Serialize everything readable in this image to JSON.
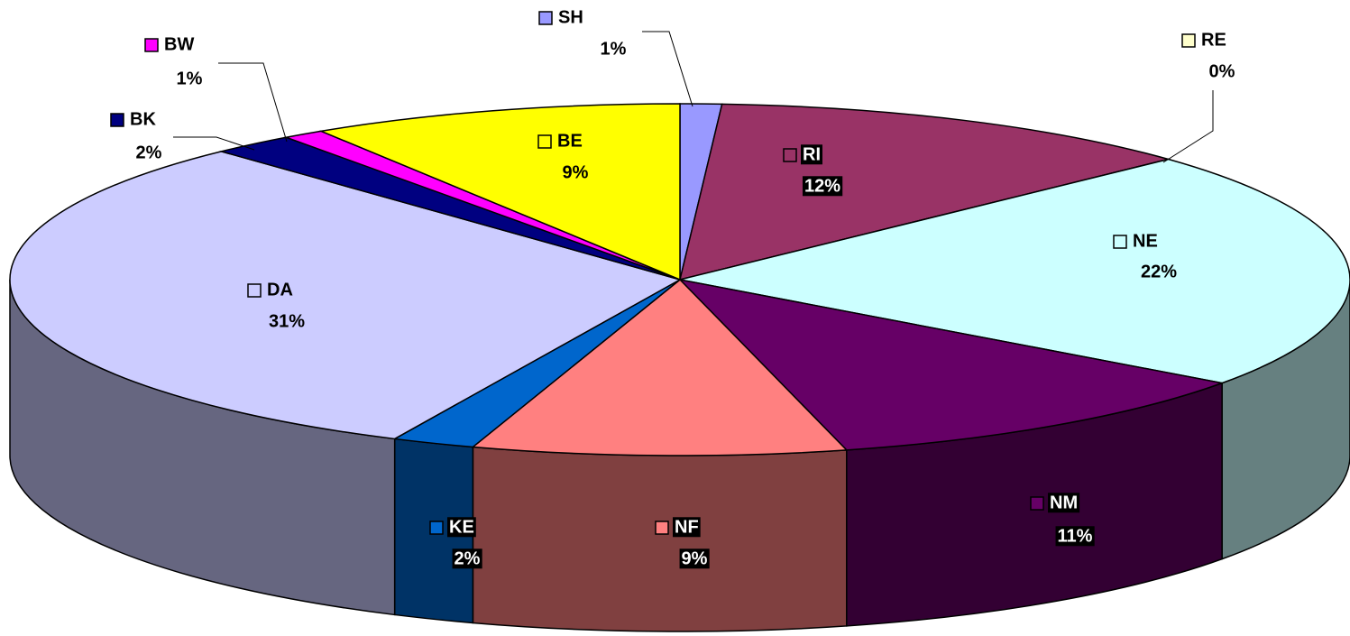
{
  "chart_data": {
    "type": "pie",
    "categories": [
      "SH",
      "RI",
      "RE",
      "NE",
      "NM",
      "NF",
      "KE",
      "DA",
      "BK",
      "BW",
      "BE"
    ],
    "values": [
      1,
      12,
      0,
      22,
      11,
      9,
      2,
      31,
      2,
      1,
      9
    ],
    "value_labels": [
      "1%",
      "12%",
      "0%",
      "22%",
      "11%",
      "9%",
      "2%",
      "31%",
      "2%",
      "1%",
      "9%"
    ],
    "colors": [
      "#9999ff",
      "#993366",
      "#ffffcc",
      "#ccffff",
      "#660066",
      "#ff8080",
      "#0066cc",
      "#ccccff",
      "#000080",
      "#ff00ff",
      "#ffff00"
    ]
  }
}
